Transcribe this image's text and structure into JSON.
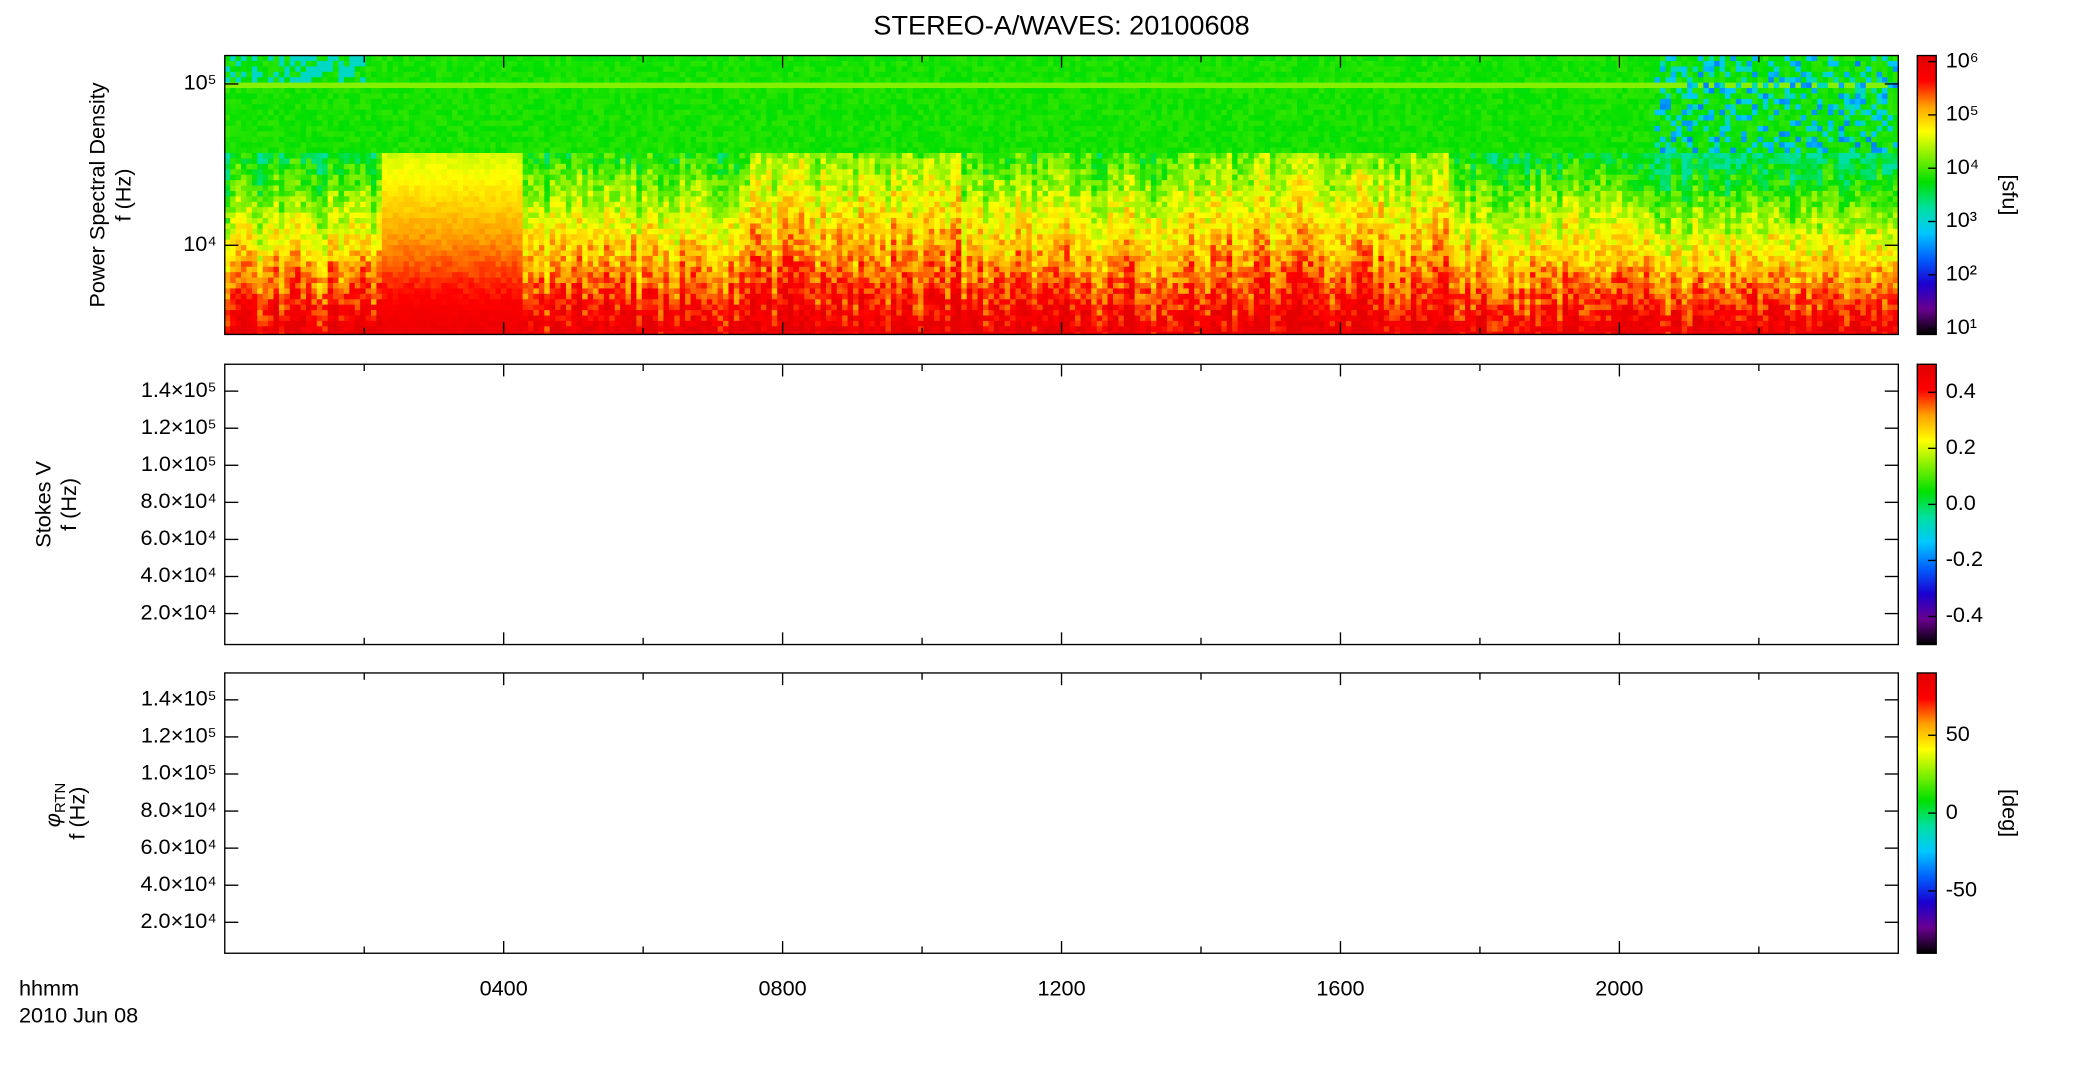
{
  "chart_data": [
    {
      "type": "heatmap",
      "title": "STEREO-A/WAVES: 20100608",
      "ylabel": "Power Spectral Density",
      "ylabel2": "f (Hz)",
      "xlim": [
        0,
        24
      ],
      "xticks": [
        {
          "value": 4,
          "label": "0400"
        },
        {
          "value": 8,
          "label": "0800"
        },
        {
          "value": 12,
          "label": "1200"
        },
        {
          "value": 16,
          "label": "1600"
        },
        {
          "value": 20,
          "label": "2000"
        }
      ],
      "xminor_ticks": [
        2,
        6,
        10,
        14,
        18,
        22
      ],
      "log_y": true,
      "ylim": [
        2800,
        150000
      ],
      "yticks": [
        {
          "value": 10000,
          "label": "10⁴"
        },
        {
          "value": 100000,
          "label": "10⁵"
        }
      ],
      "colorbar": {
        "label": "[sfu]",
        "log": true,
        "zlim": [
          7.6,
          1300000
        ],
        "zticks": [
          {
            "value": 10,
            "label": "10¹"
          },
          {
            "value": 100,
            "label": "10²"
          },
          {
            "value": 1000,
            "label": "10³"
          },
          {
            "value": 10000,
            "label": "10⁴"
          },
          {
            "value": 100000,
            "label": "10⁵"
          },
          {
            "value": 1000000,
            "label": "10⁶"
          }
        ]
      },
      "colormap": [
        "#000000",
        "#6a0090",
        "#1a00d0",
        "#0060ff",
        "#00c8ff",
        "#00e0a0",
        "#00e000",
        "#80f000",
        "#ffff00",
        "#ffa000",
        "#ff0000",
        "#e00000"
      ]
    },
    {
      "type": "heatmap",
      "ylabel": "Stokes V",
      "ylabel2": "f (Hz)",
      "xlim": [
        0,
        24
      ],
      "xticks": [
        {
          "value": 4,
          "label": "0400"
        },
        {
          "value": 8,
          "label": "0800"
        },
        {
          "value": 12,
          "label": "1200"
        },
        {
          "value": 16,
          "label": "1600"
        },
        {
          "value": 20,
          "label": "2000"
        }
      ],
      "xminor_ticks": [
        2,
        6,
        10,
        14,
        18,
        22
      ],
      "log_y": false,
      "ylim": [
        3300,
        154500
      ],
      "yticks": [
        {
          "value": 20000,
          "label": "2.0×10⁴"
        },
        {
          "value": 40000,
          "label": "4.0×10⁴"
        },
        {
          "value": 60000,
          "label": "6.0×10⁴"
        },
        {
          "value": 80000,
          "label": "8.0×10⁴"
        },
        {
          "value": 100000,
          "label": "1.0×10⁵"
        },
        {
          "value": 120000,
          "label": "1.2×10⁵"
        },
        {
          "value": 140000,
          "label": "1.4×10⁵"
        }
      ],
      "colorbar": {
        "log": false,
        "zlim": [
          -0.5,
          0.5
        ],
        "zticks": [
          -0.4,
          -0.2,
          {
            "value": 0,
            "label": "0.0"
          },
          0.2,
          0.4
        ]
      }
    },
    {
      "type": "heatmap",
      "ylabel": "φ",
      "ylabel_sub": "RTN",
      "ylabel2": "f (Hz)",
      "xlabel": "hhmm",
      "x_sublabel": "2010 Jun 08",
      "xlim": [
        0,
        24
      ],
      "xticks": [
        {
          "value": 4,
          "label": "0400"
        },
        {
          "value": 8,
          "label": "0800"
        },
        {
          "value": 12,
          "label": "1200"
        },
        {
          "value": 16,
          "label": "1600"
        },
        {
          "value": 20,
          "label": "2000"
        }
      ],
      "xminor_ticks": [
        2,
        6,
        10,
        14,
        18,
        22
      ],
      "log_y": false,
      "ylim": [
        3300,
        154500
      ],
      "yticks": [
        {
          "value": 20000,
          "label": "2.0×10⁴"
        },
        {
          "value": 40000,
          "label": "4.0×10⁴"
        },
        {
          "value": 60000,
          "label": "6.0×10⁴"
        },
        {
          "value": 80000,
          "label": "8.0×10⁴"
        },
        {
          "value": 100000,
          "label": "1.0×10⁵"
        },
        {
          "value": 120000,
          "label": "1.2×10⁵"
        },
        {
          "value": 140000,
          "label": "1.4×10⁵"
        }
      ],
      "colorbar": {
        "label": "[deg]",
        "log": false,
        "zlim": [
          -90,
          90
        ],
        "zticks": [
          -50,
          0,
          50
        ]
      }
    }
  ]
}
